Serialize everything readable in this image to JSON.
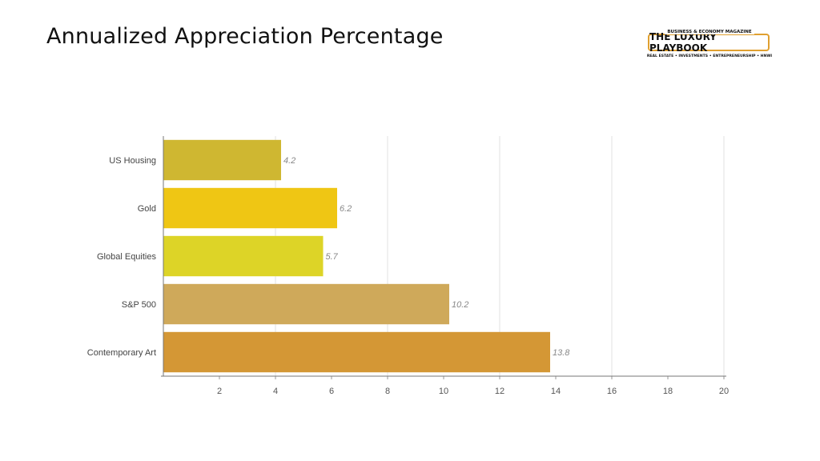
{
  "header": {
    "title": "Annualized Appreciation Percentage"
  },
  "logo": {
    "tagline_top": "BUSINESS & ECONOMY MAGAZINE",
    "name": "THE LUXURY PLAYBOOK",
    "tagline_bottom": "REAL ESTATE • INVESTMENTS • ENTREPRENEURSHIP • HNWI"
  },
  "chart_data": {
    "type": "bar",
    "orientation": "horizontal",
    "title": "Annualized Appreciation Percentage",
    "categories": [
      "US Housing",
      "Gold",
      "Global Equities",
      "S&P 500",
      "Contemporary Art"
    ],
    "values": [
      4.2,
      6.2,
      5.7,
      10.2,
      13.8
    ],
    "data_labels": [
      "4.2",
      "6.2",
      "5.7",
      "10.2",
      "13.8"
    ],
    "colors": [
      "#cfb731",
      "#efc614",
      "#ddd427",
      "#cfa95a",
      "#d49735"
    ],
    "xlim": [
      0,
      20
    ],
    "xticks": [
      2,
      4,
      6,
      8,
      10,
      12,
      14,
      16,
      18,
      20
    ],
    "xlabel": "",
    "ylabel": "",
    "grid": "vertical"
  }
}
